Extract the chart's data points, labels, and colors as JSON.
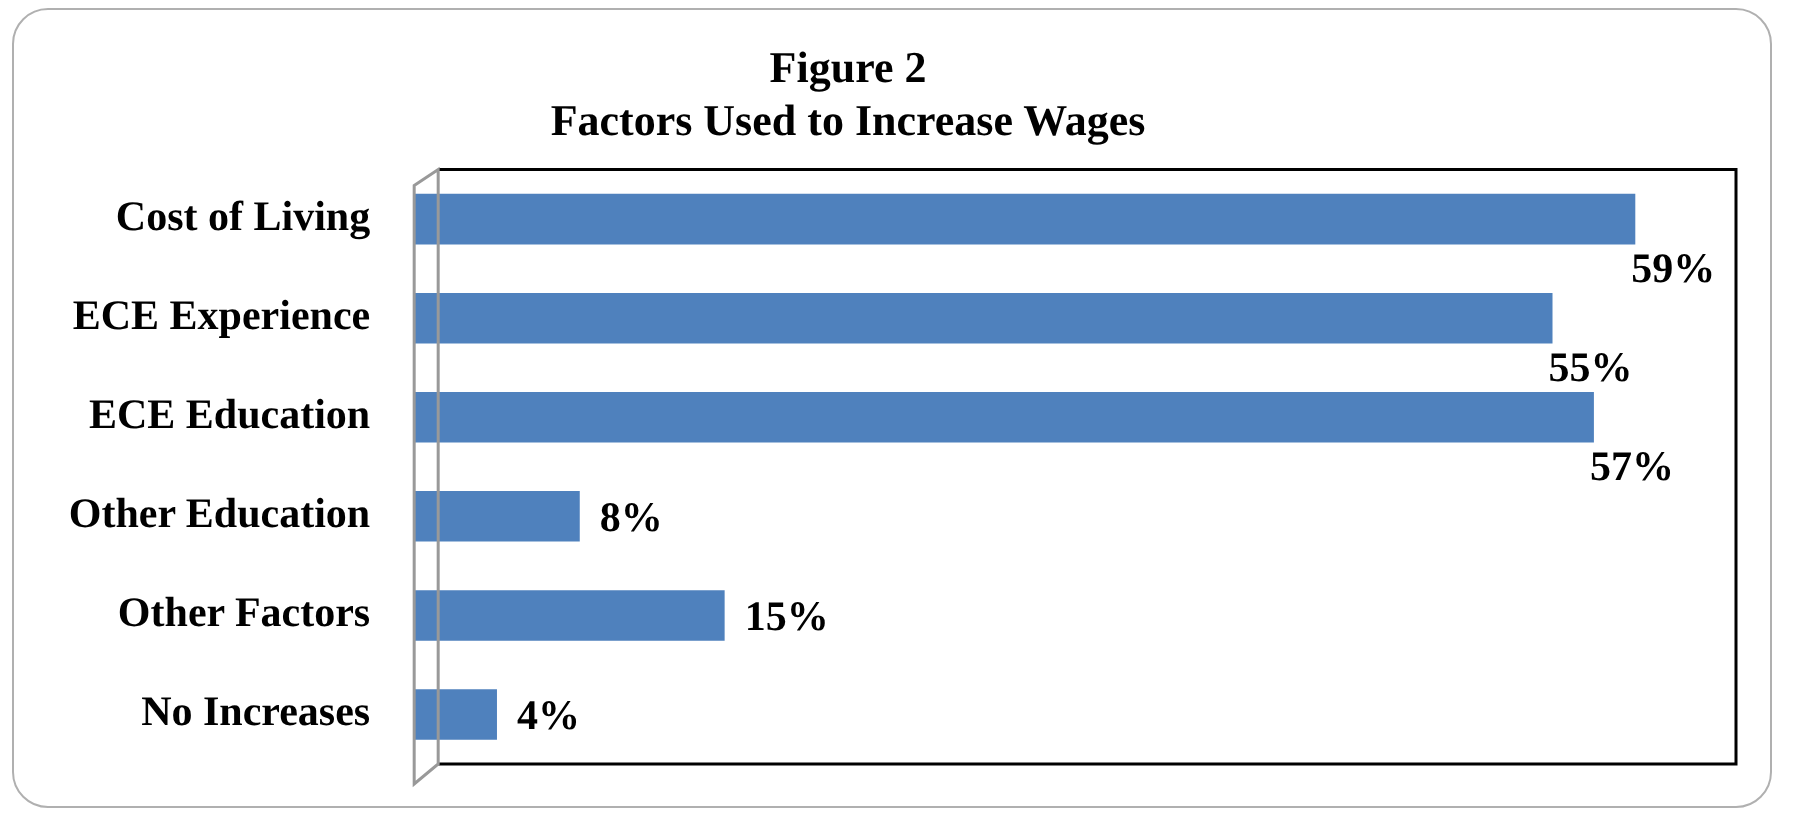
{
  "chart_data": {
    "type": "bar",
    "orientation": "horizontal",
    "title": "Figure 2",
    "subtitle": "Factors Used to Increase Wages",
    "categories": [
      "Cost of Living",
      "ECE Experience",
      "ECE Education",
      "Other Education",
      "Other Factors",
      "No Increases"
    ],
    "values": [
      59,
      55,
      57,
      8,
      15,
      4
    ],
    "color": "#4f81bd",
    "data_labels": true,
    "value_labels": [
      "59%",
      "55%",
      "57%",
      "8%",
      "15%",
      "4%"
    ],
    "legend": false,
    "tick_labels": "y"
  }
}
